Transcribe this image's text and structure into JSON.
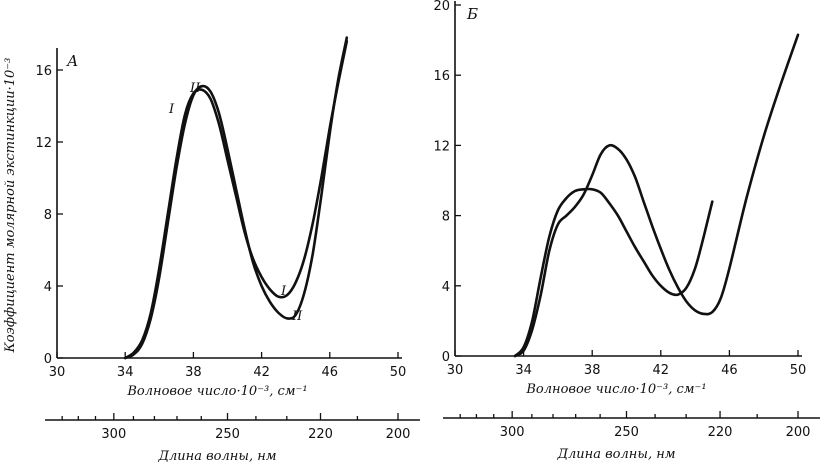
{
  "chart_data": [
    {
      "type": "line",
      "panel_label": "А",
      "ylabel": "Коэффициент молярной экстинкции·10⁻³",
      "xlabel": "Волновое число·10⁻³, см⁻¹",
      "x2label": "Длина волны, нм",
      "xlim": [
        30,
        50
      ],
      "ylim": [
        0,
        17
      ],
      "xticks": [
        30,
        34,
        38,
        42,
        46,
        50
      ],
      "yticks": [
        0,
        4,
        8,
        12,
        16
      ],
      "x2ticks": [
        300,
        250,
        220,
        200
      ],
      "series": [
        {
          "name": "I",
          "x": [
            34.0,
            34.5,
            35.0,
            35.5,
            36.0,
            36.5,
            37.0,
            37.5,
            38.0,
            38.5,
            39.0,
            39.5,
            40.0,
            40.5,
            41.0,
            41.5,
            42.0,
            42.5,
            43.0,
            43.5,
            44.0,
            44.5,
            45.0,
            45.5,
            46.0,
            46.5,
            47.0
          ],
          "y": [
            0.0,
            0.3,
            1.0,
            2.5,
            5.0,
            8.0,
            11.0,
            13.5,
            14.7,
            14.9,
            14.4,
            13.0,
            11.0,
            9.0,
            7.0,
            5.5,
            4.5,
            3.8,
            3.4,
            3.5,
            4.2,
            5.5,
            7.5,
            10.0,
            12.8,
            15.3,
            17.6
          ]
        },
        {
          "name": "II",
          "x": [
            34.0,
            34.5,
            35.0,
            35.5,
            36.0,
            36.5,
            37.0,
            37.5,
            38.0,
            38.5,
            39.0,
            39.5,
            40.0,
            40.5,
            41.0,
            41.5,
            42.0,
            42.5,
            43.0,
            43.5,
            44.0,
            44.5,
            45.0,
            45.5,
            46.0,
            46.5,
            47.0
          ],
          "y": [
            0.0,
            0.2,
            0.8,
            2.2,
            4.5,
            7.5,
            10.5,
            13.0,
            14.6,
            15.1,
            14.8,
            13.6,
            11.6,
            9.4,
            7.2,
            5.3,
            4.0,
            3.1,
            2.5,
            2.2,
            2.4,
            3.6,
            5.8,
            9.0,
            12.5,
            15.5,
            17.8
          ]
        }
      ],
      "curve_labels": [
        "I",
        "II",
        "I",
        "II"
      ]
    },
    {
      "type": "line",
      "panel_label": "Б",
      "ylabel": "",
      "xlabel": "Волновое число·10⁻³, см⁻¹",
      "x2label": "Длина волны, нм",
      "xlim": [
        30,
        50
      ],
      "ylim": [
        0,
        20
      ],
      "xticks": [
        30,
        34,
        38,
        42,
        46,
        50
      ],
      "yticks": [
        0,
        4,
        8,
        12,
        16,
        20
      ],
      "x2ticks": [
        300,
        250,
        220,
        200
      ],
      "series": [
        {
          "name": "",
          "x": [
            33.5,
            34.0,
            34.5,
            35.0,
            35.5,
            36.0,
            36.5,
            37.0,
            37.5,
            38.0,
            38.5,
            39.0,
            39.5,
            40.0,
            40.5,
            41.0,
            41.5,
            42.0,
            42.5,
            43.0,
            43.5,
            44.0,
            44.5,
            45.0
          ],
          "y": [
            0.0,
            0.5,
            2.0,
            4.5,
            6.8,
            8.3,
            9.0,
            9.4,
            9.5,
            9.5,
            9.3,
            8.7,
            8.0,
            7.1,
            6.2,
            5.4,
            4.6,
            4.0,
            3.6,
            3.5,
            3.9,
            5.0,
            6.8,
            8.8
          ]
        },
        {
          "name": "",
          "x": [
            33.5,
            34.0,
            34.5,
            35.0,
            35.5,
            36.0,
            36.5,
            37.0,
            37.5,
            38.0,
            38.5,
            39.0,
            39.5,
            40.0,
            40.5,
            41.0,
            41.5,
            42.0,
            42.5,
            43.0,
            43.5,
            44.0,
            44.5,
            45.0,
            45.5,
            46.0,
            47.0,
            48.0,
            49.0,
            50.0
          ],
          "y": [
            0.0,
            0.3,
            1.5,
            3.5,
            6.0,
            7.5,
            8.0,
            8.5,
            9.2,
            10.3,
            11.5,
            12.0,
            11.8,
            11.2,
            10.2,
            8.8,
            7.4,
            6.1,
            4.9,
            3.9,
            3.1,
            2.6,
            2.4,
            2.5,
            3.3,
            5.0,
            9.0,
            12.5,
            15.5,
            18.3
          ]
        }
      ]
    }
  ]
}
